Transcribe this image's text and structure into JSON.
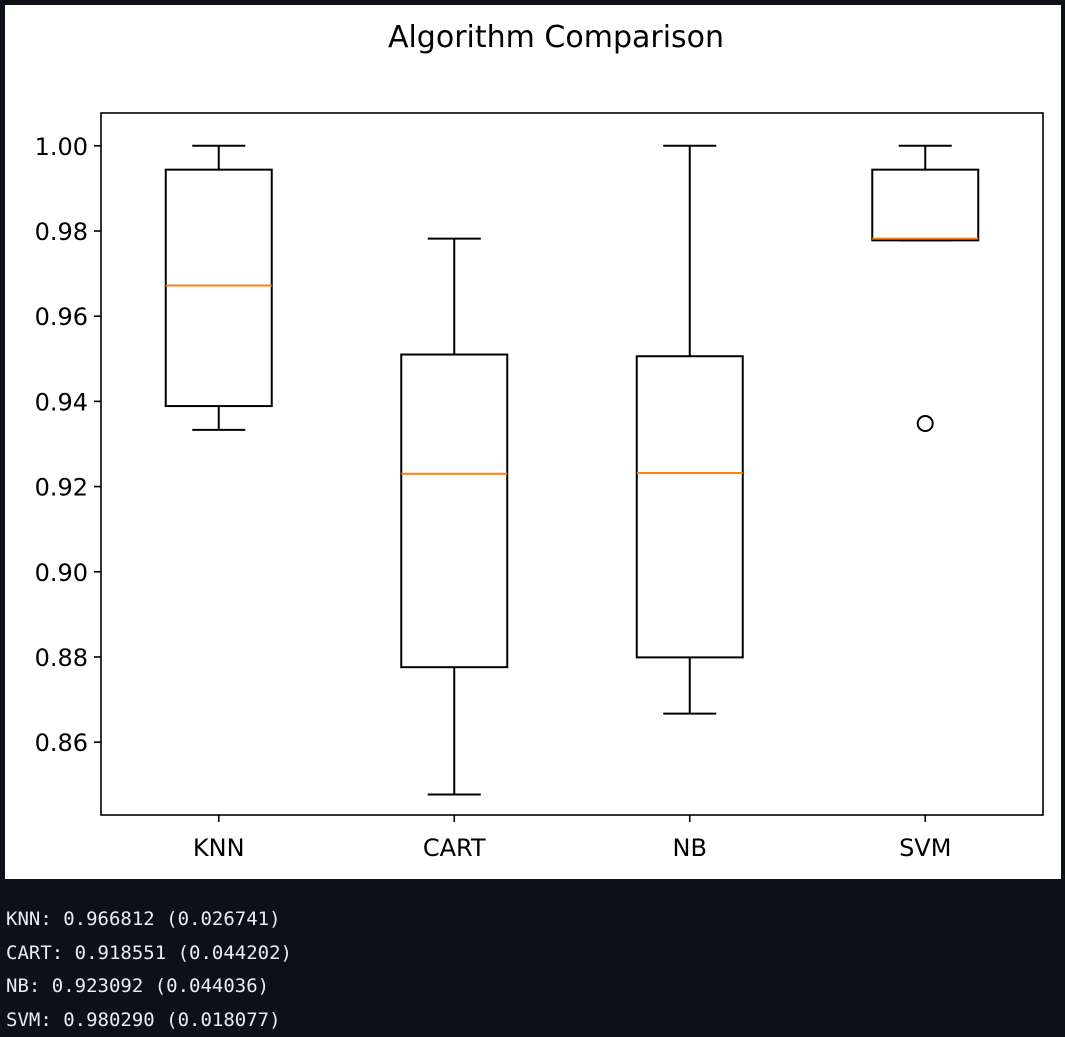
{
  "chart_data": {
    "type": "box",
    "title": "Algorithm Comparison",
    "xlabel": "",
    "ylabel": "",
    "categories": [
      "KNN",
      "CART",
      "NB",
      "SVM"
    ],
    "ylim": [
      0.8429,
      1.0077
    ],
    "yticks": [
      0.86,
      0.88,
      0.9,
      0.92,
      0.94,
      0.96,
      0.98,
      1.0
    ],
    "ytick_labels": [
      "0.86",
      "0.88",
      "0.90",
      "0.92",
      "0.94",
      "0.96",
      "0.98",
      "1.00"
    ],
    "grid": false,
    "boxes": [
      {
        "name": "KNN",
        "whisker_low": 0.9333,
        "q1": 0.9389,
        "median": 0.9672,
        "q3": 0.9944,
        "whisker_high": 1.0,
        "outliers": []
      },
      {
        "name": "CART",
        "whisker_low": 0.8477,
        "q1": 0.8776,
        "median": 0.923,
        "q3": 0.951,
        "whisker_high": 0.9782,
        "outliers": []
      },
      {
        "name": "NB",
        "whisker_low": 0.8667,
        "q1": 0.8799,
        "median": 0.9232,
        "q3": 0.9506,
        "whisker_high": 1.0,
        "outliers": []
      },
      {
        "name": "SVM",
        "whisker_low": 0.9778,
        "q1": 0.9778,
        "median": 0.9782,
        "q3": 0.9944,
        "whisker_high": 1.0,
        "outliers": [
          0.9348
        ]
      }
    ],
    "colors": {
      "box": "#000000",
      "median": "#ff7f0e",
      "background": "#ffffff"
    }
  },
  "console": {
    "lines": [
      "KNN: 0.966812 (0.026741)",
      "CART: 0.918551 (0.044202)",
      "NB: 0.923092 (0.044036)",
      "SVM: 0.980290 (0.018077)"
    ]
  },
  "colors": {
    "page_background": "#0d1117",
    "console_text": "#e6edf3"
  }
}
